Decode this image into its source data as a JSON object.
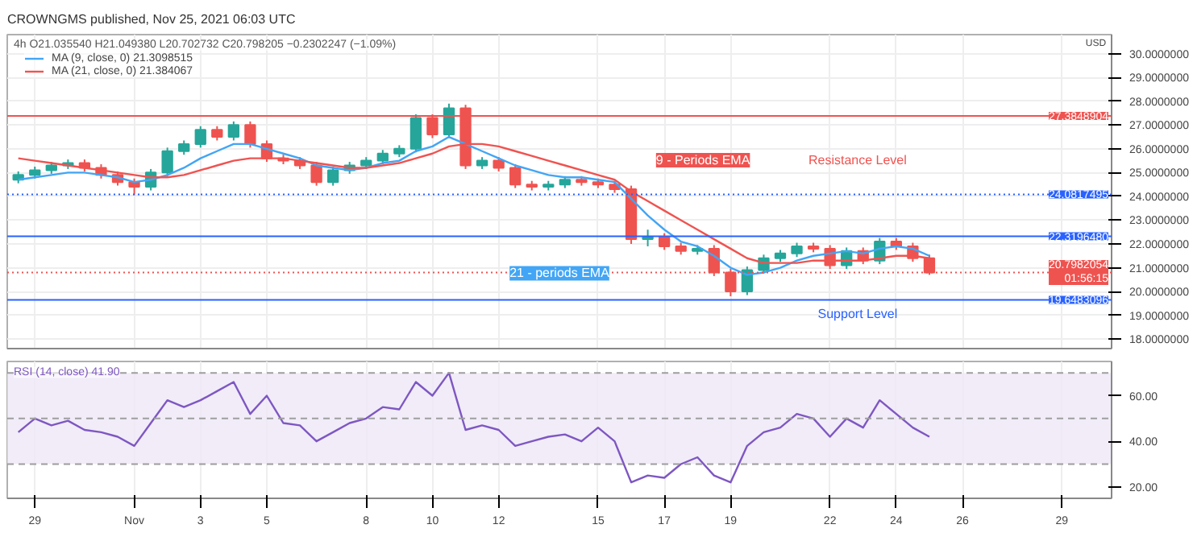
{
  "chart_data": [
    {
      "type": "candlestick",
      "title": "CROWNGMS published, Nov 25, 2021 06:03 UTC",
      "subtitle": "4h O21.035540 H21.049380 L20.702732 C20.798205 −0.2302247 (−1.09%)",
      "x": [
        "2021-10-28T12:00",
        "2021-10-29T00:00",
        "2021-10-29T12:00",
        "2021-10-30T00:00",
        "2021-10-30T12:00",
        "2021-10-31T00:00",
        "2021-10-31T12:00",
        "2021-11-01T00:00",
        "2021-11-01T12:00",
        "2021-11-02T00:00",
        "2021-11-02T12:00",
        "2021-11-03T00:00",
        "2021-11-03T12:00",
        "2021-11-04T00:00",
        "2021-11-04T12:00",
        "2021-11-05T00:00",
        "2021-11-05T12:00",
        "2021-11-06T00:00",
        "2021-11-06T12:00",
        "2021-11-07T00:00",
        "2021-11-07T12:00",
        "2021-11-08T00:00",
        "2021-11-08T12:00",
        "2021-11-09T00:00",
        "2021-11-09T12:00",
        "2021-11-10T00:00",
        "2021-11-10T12:00",
        "2021-11-11T00:00",
        "2021-11-11T12:00",
        "2021-11-12T00:00",
        "2021-11-12T12:00",
        "2021-11-13T00:00",
        "2021-11-13T12:00",
        "2021-11-14T00:00",
        "2021-11-14T12:00",
        "2021-11-15T00:00",
        "2021-11-15T12:00",
        "2021-11-16T00:00",
        "2021-11-16T12:00",
        "2021-11-17T00:00",
        "2021-11-17T12:00",
        "2021-11-18T00:00",
        "2021-11-18T12:00",
        "2021-11-19T00:00",
        "2021-11-19T12:00",
        "2021-11-20T00:00",
        "2021-11-20T12:00",
        "2021-11-21T00:00",
        "2021-11-21T12:00",
        "2021-11-22T00:00",
        "2021-11-22T12:00",
        "2021-11-23T00:00",
        "2021-11-23T12:00",
        "2021-11-24T00:00",
        "2021-11-24T12:00",
        "2021-11-25T00:00"
      ],
      "ohlc": [
        [
          24.7,
          25.05,
          24.55,
          24.9
        ],
        [
          24.9,
          25.25,
          24.75,
          25.1
        ],
        [
          25.1,
          25.45,
          24.95,
          25.3
        ],
        [
          25.3,
          25.55,
          25.15,
          25.4
        ],
        [
          25.4,
          25.55,
          25.05,
          25.2
        ],
        [
          25.2,
          25.35,
          24.75,
          24.9
        ],
        [
          24.9,
          25.05,
          24.45,
          24.6
        ],
        [
          24.6,
          24.75,
          24.05,
          24.4
        ],
        [
          24.4,
          25.15,
          24.25,
          25.0
        ],
        [
          25.0,
          26.05,
          24.85,
          25.9
        ],
        [
          25.9,
          26.35,
          25.75,
          26.2
        ],
        [
          26.2,
          26.95,
          26.05,
          26.8
        ],
        [
          26.8,
          26.95,
          26.35,
          26.5
        ],
        [
          26.5,
          27.15,
          26.35,
          27.0
        ],
        [
          27.0,
          27.15,
          26.05,
          26.2
        ],
        [
          26.2,
          26.35,
          25.45,
          25.6
        ],
        [
          25.6,
          25.75,
          25.35,
          25.5
        ],
        [
          25.5,
          25.65,
          25.15,
          25.3
        ],
        [
          25.3,
          25.45,
          24.45,
          24.6
        ],
        [
          24.6,
          25.25,
          24.45,
          25.1
        ],
        [
          25.1,
          25.45,
          24.95,
          25.3
        ],
        [
          25.3,
          25.65,
          25.15,
          25.5
        ],
        [
          25.5,
          25.95,
          25.35,
          25.8
        ],
        [
          25.8,
          26.15,
          25.65,
          26.0
        ],
        [
          26.0,
          27.45,
          25.85,
          27.3
        ],
        [
          27.3,
          27.45,
          26.45,
          26.6
        ],
        [
          26.6,
          27.9,
          26.45,
          27.7
        ],
        [
          27.7,
          27.85,
          25.15,
          25.3
        ],
        [
          25.3,
          25.65,
          25.15,
          25.5
        ],
        [
          25.5,
          25.65,
          25.05,
          25.2
        ],
        [
          25.2,
          25.35,
          24.35,
          24.5
        ],
        [
          24.5,
          24.65,
          24.25,
          24.4
        ],
        [
          24.4,
          24.65,
          24.25,
          24.5
        ],
        [
          24.5,
          24.85,
          24.35,
          24.7
        ],
        [
          24.7,
          24.85,
          24.45,
          24.6
        ],
        [
          24.6,
          24.75,
          24.35,
          24.5
        ],
        [
          24.5,
          24.65,
          24.15,
          24.3
        ],
        [
          24.3,
          24.45,
          22.0,
          22.2
        ],
        [
          22.2,
          22.6,
          21.9,
          22.3
        ],
        [
          22.3,
          22.45,
          21.75,
          21.9
        ],
        [
          21.9,
          22.05,
          21.55,
          21.7
        ],
        [
          21.7,
          21.95,
          21.55,
          21.8
        ],
        [
          21.8,
          21.95,
          20.65,
          20.8
        ],
        [
          20.8,
          20.95,
          19.8,
          20.0
        ],
        [
          20.0,
          21.05,
          19.85,
          20.9
        ],
        [
          20.9,
          21.55,
          20.75,
          21.4
        ],
        [
          21.4,
          21.75,
          21.25,
          21.6
        ],
        [
          21.6,
          22.05,
          21.45,
          21.9
        ],
        [
          21.9,
          22.05,
          21.65,
          21.8
        ],
        [
          21.8,
          21.95,
          20.95,
          21.1
        ],
        [
          21.1,
          21.85,
          20.95,
          21.7
        ],
        [
          21.7,
          21.85,
          21.15,
          21.3
        ],
        [
          21.3,
          22.25,
          21.15,
          22.1
        ],
        [
          22.1,
          22.25,
          21.75,
          21.9
        ],
        [
          21.9,
          22.05,
          21.25,
          21.4
        ],
        [
          21.4,
          21.55,
          20.7,
          20.8
        ]
      ],
      "series": [
        {
          "type": "line",
          "name": "MA (9, close, 0) 21.3098515",
          "color": "#42a5f5",
          "values": [
            24.7,
            24.8,
            24.9,
            25.0,
            25.0,
            24.9,
            24.8,
            24.6,
            24.7,
            24.9,
            25.2,
            25.6,
            25.9,
            26.2,
            26.2,
            26.0,
            25.8,
            25.6,
            25.3,
            25.2,
            25.1,
            25.2,
            25.4,
            25.5,
            25.9,
            26.1,
            26.5,
            26.2,
            25.9,
            25.6,
            25.3,
            25.1,
            24.9,
            24.8,
            24.8,
            24.7,
            24.6,
            23.9,
            23.2,
            22.6,
            22.1,
            21.9,
            21.5,
            21.0,
            20.7,
            20.8,
            21.0,
            21.3,
            21.5,
            21.6,
            21.7,
            21.6,
            21.8,
            21.9,
            21.8,
            21.5
          ]
        },
        {
          "type": "line",
          "name": "MA (21, close, 0) 21.384067",
          "color": "#ef5350",
          "values": [
            25.6,
            25.5,
            25.4,
            25.3,
            25.2,
            25.1,
            25.0,
            24.9,
            24.8,
            24.8,
            24.9,
            25.1,
            25.3,
            25.5,
            25.6,
            25.6,
            25.6,
            25.5,
            25.4,
            25.3,
            25.2,
            25.2,
            25.3,
            25.4,
            25.6,
            25.8,
            26.1,
            26.2,
            26.2,
            26.1,
            25.9,
            25.7,
            25.5,
            25.3,
            25.1,
            24.9,
            24.7,
            24.2,
            23.8,
            23.4,
            23.0,
            22.6,
            22.2,
            21.8,
            21.4,
            21.2,
            21.2,
            21.2,
            21.3,
            21.3,
            21.3,
            21.3,
            21.4,
            21.5,
            21.5,
            21.4
          ]
        }
      ],
      "xlim": [
        "2021-10-28T04:00",
        "2021-11-30T12:00"
      ],
      "xticks": [
        {
          "value": "2021-10-29",
          "label": null
        },
        {
          "value": "2021-11-01",
          "label": null
        },
        {
          "value": "2021-11-03",
          "label": null
        },
        {
          "value": "2021-11-05",
          "label": null
        },
        {
          "value": "2021-11-08",
          "label": null
        },
        {
          "value": "2021-11-10",
          "label": null
        },
        {
          "value": "2021-11-12",
          "label": null
        },
        {
          "value": "2021-11-15",
          "label": null
        },
        {
          "value": "2021-11-17",
          "label": null
        },
        {
          "value": "2021-11-19",
          "label": null
        },
        {
          "value": "2021-11-22",
          "label": null
        },
        {
          "value": "2021-11-24",
          "label": null
        },
        {
          "value": "2021-11-26",
          "label": null
        },
        {
          "value": "2021-11-29",
          "label": null
        }
      ],
      "ylim": [
        17.6,
        30.8
      ],
      "yticks": [
        {
          "value": 18,
          "label": "18.0000000"
        },
        {
          "value": 19,
          "label": "19.0000000"
        },
        {
          "value": 20,
          "label": "20.0000000"
        },
        {
          "value": 21,
          "label": "21.0000000"
        },
        {
          "value": 22,
          "label": "22.0000000"
        },
        {
          "value": 23,
          "label": "23.0000000"
        },
        {
          "value": 24,
          "label": "24.0000000"
        },
        {
          "value": 25,
          "label": "25.0000000"
        },
        {
          "value": 26,
          "label": "26.0000000"
        },
        {
          "value": 27,
          "label": "27.0000000"
        },
        {
          "value": 28,
          "label": "28.0000000"
        },
        {
          "value": 29,
          "label": "29.0000000"
        },
        {
          "value": 30,
          "label": "30.0000000"
        }
      ],
      "ref_lines": [
        {
          "axis": "y",
          "value": 27.3848904,
          "label": "27.3848904",
          "color": "#ef5350",
          "line_style": "solid"
        },
        {
          "axis": "y",
          "value": 24.0817495,
          "label": "24.0817495",
          "color": "#2962ff",
          "line_style": "dotted"
        },
        {
          "axis": "y",
          "value": 22.319648,
          "label": "22.3196480",
          "color": "#2962ff",
          "line_style": "solid"
        },
        {
          "axis": "y",
          "value": 20.7982054,
          "label": "20.7982054\n01:56:15",
          "color": "#ef5350",
          "line_style": "dotted"
        },
        {
          "axis": "y",
          "value": 19.6483096,
          "label": "19.6483096",
          "color": "#2962ff",
          "line_style": "solid"
        }
      ],
      "annotations": [
        "9 - Periods EMA",
        "21 - periods EMA",
        "Resistance Level",
        "Support Level",
        "USD"
      ],
      "grid": true,
      "legend": "top left",
      "tick_labels": "y"
    },
    {
      "type": "line",
      "x": [
        "2021-10-28T12:00",
        "2021-10-29T00:00",
        "2021-10-29T12:00",
        "2021-10-30T00:00",
        "2021-10-30T12:00",
        "2021-10-31T00:00",
        "2021-10-31T12:00",
        "2021-11-01T00:00",
        "2021-11-01T12:00",
        "2021-11-02T00:00",
        "2021-11-02T12:00",
        "2021-11-03T00:00",
        "2021-11-03T12:00",
        "2021-11-04T00:00",
        "2021-11-04T12:00",
        "2021-11-05T00:00",
        "2021-11-05T12:00",
        "2021-11-06T00:00",
        "2021-11-06T12:00",
        "2021-11-07T00:00",
        "2021-11-07T12:00",
        "2021-11-08T00:00",
        "2021-11-08T12:00",
        "2021-11-09T00:00",
        "2021-11-09T12:00",
        "2021-11-10T00:00",
        "2021-11-10T12:00",
        "2021-11-11T00:00",
        "2021-11-11T12:00",
        "2021-11-12T00:00",
        "2021-11-12T12:00",
        "2021-11-13T00:00",
        "2021-11-13T12:00",
        "2021-11-14T00:00",
        "2021-11-14T12:00",
        "2021-11-15T00:00",
        "2021-11-15T12:00",
        "2021-11-16T00:00",
        "2021-11-16T12:00",
        "2021-11-17T00:00",
        "2021-11-17T12:00",
        "2021-11-18T00:00",
        "2021-11-18T12:00",
        "2021-11-19T00:00",
        "2021-11-19T12:00",
        "2021-11-20T00:00",
        "2021-11-20T12:00",
        "2021-11-21T00:00",
        "2021-11-21T12:00",
        "2021-11-22T00:00",
        "2021-11-22T12:00",
        "2021-11-23T00:00",
        "2021-11-23T12:00",
        "2021-11-24T00:00",
        "2021-11-24T12:00",
        "2021-11-25T00:00"
      ],
      "series": [
        {
          "name": "RSI (14, close) 41.90",
          "color": "#7e57c2",
          "values": [
            44,
            50,
            47,
            49,
            45,
            44,
            42,
            38,
            48,
            58,
            55,
            58,
            62,
            66,
            52,
            60,
            48,
            47,
            40,
            44,
            48,
            50,
            55,
            54,
            66,
            60,
            70,
            45,
            47,
            45,
            38,
            40,
            42,
            43,
            40,
            46,
            40,
            22,
            25,
            24,
            30,
            33,
            25,
            22,
            38,
            44,
            46,
            52,
            50,
            42,
            50,
            46,
            58,
            52,
            46,
            42
          ]
        }
      ],
      "xlim": [
        "2021-10-28T04:00",
        "2021-11-30T12:00"
      ],
      "xticks": [
        {
          "value": "2021-10-29",
          "label": "29"
        },
        {
          "value": "2021-11-01",
          "label": "Nov"
        },
        {
          "value": "2021-11-03",
          "label": "3"
        },
        {
          "value": "2021-11-05",
          "label": "5"
        },
        {
          "value": "2021-11-08",
          "label": "8"
        },
        {
          "value": "2021-11-10",
          "label": "10"
        },
        {
          "value": "2021-11-12",
          "label": "12"
        },
        {
          "value": "2021-11-15",
          "label": "15"
        },
        {
          "value": "2021-11-17",
          "label": "17"
        },
        {
          "value": "2021-11-19",
          "label": "19"
        },
        {
          "value": "2021-11-22",
          "label": "22"
        },
        {
          "value": "2021-11-24",
          "label": "24"
        },
        {
          "value": "2021-11-26",
          "label": "26"
        },
        {
          "value": "2021-11-29",
          "label": "29"
        }
      ],
      "ylim": [
        15,
        75
      ],
      "yticks": [
        {
          "value": 20,
          "label": "20.00"
        },
        {
          "value": 40,
          "label": "40.00"
        },
        {
          "value": 60,
          "label": "60.00"
        }
      ],
      "bands": [
        {
          "axis": "y",
          "from": 30,
          "to": 70,
          "color": "#ede7f6"
        }
      ],
      "ref_lines": [
        {
          "axis": "y",
          "value": 70,
          "color": "#9e9e9e",
          "line_style": "dashed"
        },
        {
          "axis": "y",
          "value": 50,
          "color": "#9e9e9e",
          "line_style": "dashed"
        },
        {
          "axis": "y",
          "value": 30,
          "color": "#9e9e9e",
          "line_style": "dashed"
        }
      ],
      "grid": "x",
      "line_style": "solid"
    }
  ]
}
